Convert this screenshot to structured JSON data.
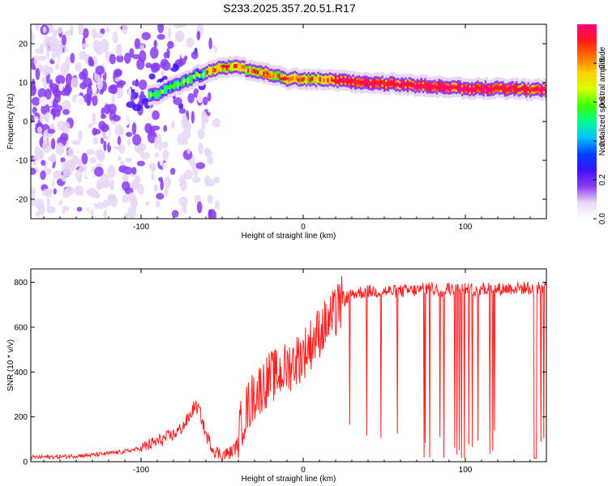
{
  "title": "S233.2025.357.20.51.R17",
  "chart_data": [
    {
      "type": "heatmap",
      "xlabel": "Height of straight line (km)",
      "ylabel": "Frequency (Hz)",
      "xlim": [
        -168,
        150
      ],
      "ylim": [
        -25,
        25
      ],
      "xticks": [
        -100,
        0,
        100
      ],
      "yticks": [
        -20,
        -10,
        0,
        10,
        20
      ],
      "colorbar": {
        "label": "Normalized spectral amplitude",
        "range": [
          0,
          1
        ],
        "ticks": [
          "0.0",
          "0.2",
          "0.4",
          "0.6",
          "0.8"
        ],
        "colormap": [
          "#ffffff",
          "#e8d6f6",
          "#8a3cf0",
          "#3c10ff",
          "#0040ff",
          "#00c0ff",
          "#00ff90",
          "#40ff00",
          "#d8ff00",
          "#ffd000",
          "#ff7000",
          "#ff1a1a",
          "#ff0080"
        ]
      },
      "ridge": {
        "x": [
          -90,
          -80,
          -70,
          -60,
          -50,
          -40,
          -30,
          -20,
          -10,
          0,
          20,
          40,
          60,
          80,
          100,
          120,
          150
        ],
        "y": [
          7,
          9,
          11,
          12.5,
          14,
          14,
          13,
          12,
          11,
          11,
          10.5,
          10,
          9.5,
          9,
          8.5,
          8.5,
          8
        ]
      }
    },
    {
      "type": "line",
      "xlabel": "Height of straight line (km)",
      "ylabel": "SNR (10 * v/v)",
      "xlim": [
        -168,
        150
      ],
      "ylim": [
        0,
        860
      ],
      "xticks": [
        -100,
        0,
        100
      ],
      "yticks": [
        0,
        200,
        400,
        600,
        800
      ],
      "color": "#ff2020",
      "x": [
        -168,
        -150,
        -130,
        -110,
        -100,
        -90,
        -80,
        -75,
        -70,
        -67,
        -64,
        -60,
        -55,
        -50,
        -45,
        -42,
        -40,
        -38,
        -35,
        -30,
        -25,
        -20,
        -15,
        -10,
        -5,
        0,
        5,
        10,
        15,
        20,
        22,
        25,
        30,
        40,
        50,
        60,
        70,
        75,
        80,
        85,
        90,
        100,
        110,
        120,
        130,
        140,
        150
      ],
      "y": [
        20,
        22,
        30,
        45,
        60,
        90,
        120,
        150,
        200,
        250,
        230,
        120,
        50,
        30,
        40,
        60,
        90,
        180,
        230,
        300,
        340,
        380,
        390,
        420,
        450,
        480,
        530,
        580,
        620,
        660,
        690,
        720,
        750,
        760,
        760,
        760,
        765,
        770,
        770,
        765,
        770,
        770,
        770,
        770,
        775,
        775,
        780
      ]
    }
  ]
}
